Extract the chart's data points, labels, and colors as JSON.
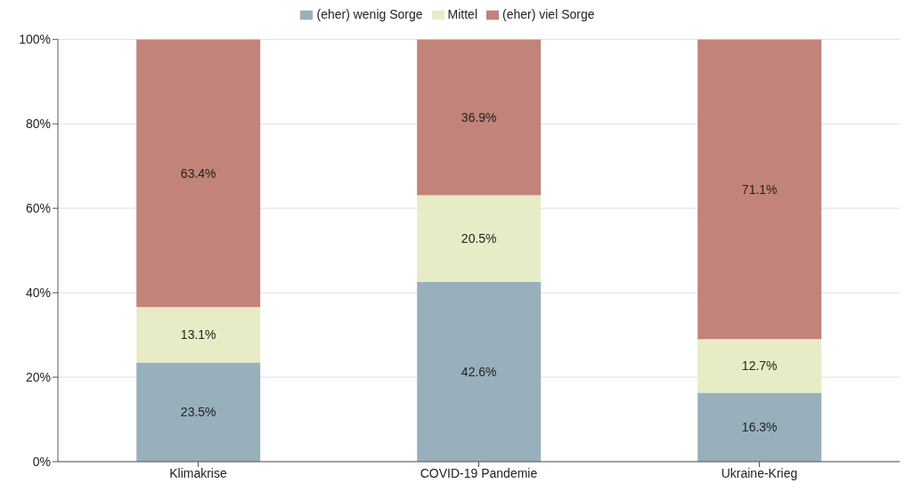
{
  "chart_data": {
    "type": "bar",
    "stacked": true,
    "categories": [
      "Klimakrise",
      "COVID-19 Pandemie",
      "Ukraine-Krieg"
    ],
    "series": [
      {
        "name": "(eher) wenig Sorge",
        "color": "#98b0bb",
        "values": [
          23.5,
          42.6,
          16.3
        ],
        "value_labels": [
          "23.5%",
          "42.6%",
          "16.3%"
        ]
      },
      {
        "name": "Mittel",
        "color": "#e8ecc6",
        "values": [
          13.1,
          20.5,
          12.7
        ],
        "value_labels": [
          "13.1%",
          "20.5%",
          "12.7%"
        ]
      },
      {
        "name": "(eher) viel Sorge",
        "color": "#c2837a",
        "values": [
          63.4,
          36.9,
          71.1
        ],
        "value_labels": [
          "63.4%",
          "36.9%",
          "71.1%"
        ]
      }
    ],
    "ylim": [
      0,
      100
    ],
    "yticks": [
      {
        "value": 0,
        "label": "0%"
      },
      {
        "value": 20,
        "label": "20%"
      },
      {
        "value": 40,
        "label": "40%"
      },
      {
        "value": 60,
        "label": "60%"
      },
      {
        "value": 80,
        "label": "80%"
      },
      {
        "value": 100,
        "label": "100%"
      }
    ],
    "grid": "y",
    "legend": "top"
  }
}
